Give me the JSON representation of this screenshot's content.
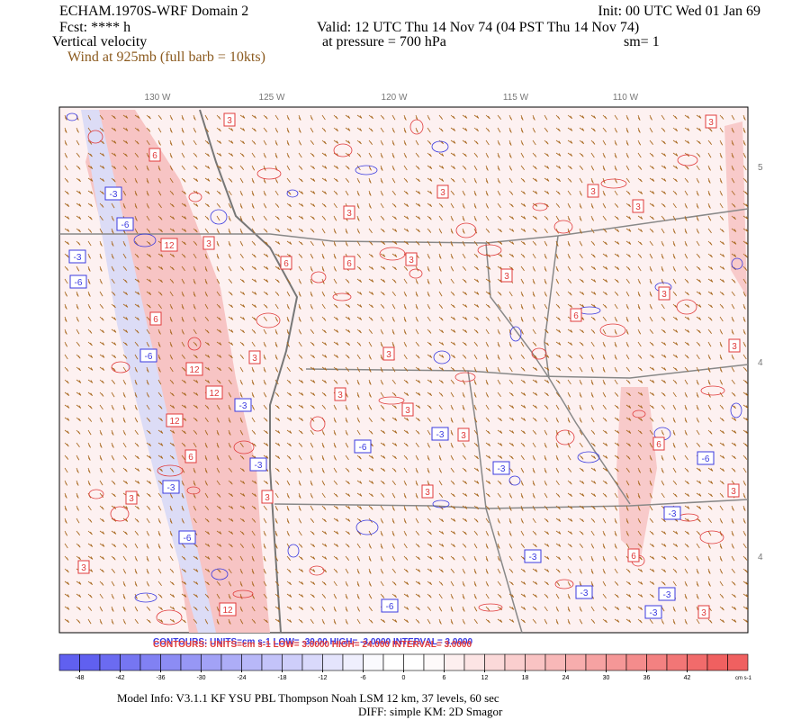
{
  "header": {
    "left": [
      "ECHAM.1970S-WRF Domain 2",
      "Fcst: **** h",
      "Vertical velocity"
    ],
    "wind_note": "Wind at 925mb (full barb = 10kts)",
    "init": "Init: 00 UTC Wed 01 Jan 69",
    "valid": "Valid: 12 UTC Thu 14 Nov 74 (04 PST Thu 14 Nov 74)",
    "pressure": "at pressure =  700 hPa",
    "smoothing": "sm= 1"
  },
  "map": {
    "longitude_labels": [
      "130 W",
      "125 W",
      "120 W",
      "115 W",
      "110 W"
    ],
    "latitude_labels": [
      "5",
      "4",
      "4"
    ],
    "contour_labels": [
      3,
      3,
      6,
      3,
      3,
      3,
      3,
      12,
      3,
      6,
      6,
      3,
      3,
      3,
      6,
      6,
      3,
      3,
      3,
      12,
      12,
      3,
      3,
      12,
      6,
      3,
      6,
      3,
      3,
      3,
      3,
      3,
      12,
      6,
      3,
      -3,
      -6,
      -3,
      -6,
      -6,
      -3,
      -3,
      -6,
      -3,
      -3,
      -6,
      -3,
      -6,
      -3,
      -3,
      -6,
      -3,
      -3,
      -3
    ],
    "negative_color": "#3a3ae0",
    "positive_color": "#e03a3a",
    "wind_color": "#a8681e"
  },
  "contours": {
    "negative": "CONTOURS:  UNITS=cm s-1  LOW= -30.00     HIGH= -3.0000     INTERVAL= 3.0000",
    "positive": "CONTOURS:  UNITS=cm s-1  LOW=  3.0000     HIGH=  24.000     INTERVAL= 3.0000"
  },
  "colorbar": {
    "lim": [
      -51,
      51
    ],
    "step": 3,
    "ticks": [
      -48,
      -42,
      -36,
      -30,
      -24,
      -18,
      -12,
      -6,
      0,
      6,
      12,
      18,
      24,
      30,
      36,
      42
    ],
    "units": "cm s-1",
    "negative_color": "#6060f0",
    "positive_color": "#f06060"
  },
  "footer": [
    "Model Info: V3.1.1    KF     YSU PBL   Thompson     Noah LSM  12 km,    37 levels,    60 sec",
    "DIFF: simple KM: 2D Smagor"
  ]
}
